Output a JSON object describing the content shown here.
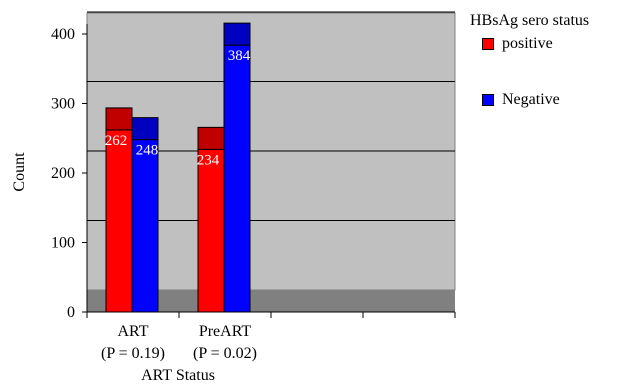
{
  "chart_data": {
    "type": "bar",
    "variant": "3d-grouped",
    "categories": [
      "ART",
      "PreART"
    ],
    "category_sublabels": [
      "(P = 0.19)",
      "(P = 0.02)"
    ],
    "series": [
      {
        "name": "positive",
        "values": [
          262,
          234
        ],
        "color": "#ff0000",
        "top_color": "#c00000"
      },
      {
        "name": "Negative",
        "values": [
          248,
          384
        ],
        "color": "#0000ff",
        "top_color": "#0000c0"
      }
    ],
    "data_labels": [
      [
        "262",
        "234"
      ],
      [
        "248",
        "384"
      ]
    ],
    "title": "",
    "xlabel": "ART Status",
    "ylabel": "Count",
    "ylim": [
      0,
      400
    ],
    "yticks": [
      0,
      100,
      200,
      300,
      400
    ],
    "x_slot_count": 4,
    "grid": true,
    "plot_background": "#c0c0c0",
    "floor_color": "#808080",
    "legend_title": "HBsAg sero status",
    "legend_position": "right"
  }
}
